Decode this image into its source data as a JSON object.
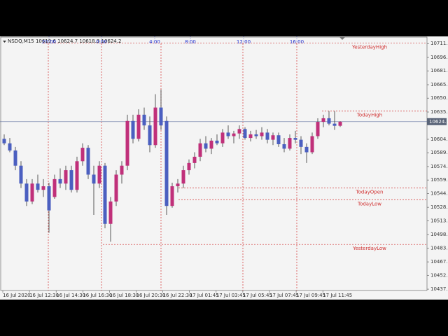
{
  "chart_data": {
    "type": "candlestick",
    "title": "NSDQ,M15  10619.6 10624.7 10618.3 10624.2",
    "open": [
      10605,
      10600,
      10592,
      10575,
      10555,
      10535,
      10555,
      10548,
      10552,
      10540,
      10560,
      10555,
      10570,
      10548,
      10580,
      10595,
      10565,
      10555,
      10575,
      10510,
      10535,
      10565,
      10575,
      10625,
      10605,
      10632,
      10620,
      10598,
      10640,
      10625,
      10530,
      10552,
      10555,
      10570,
      10578,
      10585,
      10600,
      10594,
      10603,
      10600,
      10612,
      10608,
      10611,
      10616,
      10606,
      10610,
      10608,
      10612,
      10604,
      10609,
      10599,
      10594,
      10606,
      10604,
      10596,
      10590,
      10608,
      10624,
      10628,
      10622,
      10619.6
    ],
    "high": [
      10610,
      10606,
      10596,
      10580,
      10560,
      10560,
      10565,
      10560,
      10556,
      10565,
      10572,
      10575,
      10575,
      10585,
      10600,
      10598,
      10575,
      10580,
      10578,
      10540,
      10570,
      10580,
      10632,
      10632,
      10638,
      10640,
      10630,
      10655,
      10660,
      10630,
      10556,
      10560,
      10575,
      10582,
      10590,
      10605,
      10608,
      10606,
      10610,
      10616,
      10620,
      10614,
      10620,
      10618,
      10614,
      10615,
      10618,
      10616,
      10612,
      10612,
      10606,
      10610,
      10614,
      10608,
      10600,
      10612,
      10628,
      10632,
      10636,
      10636,
      10624.7
    ],
    "low": [
      10598,
      10590,
      10570,
      10550,
      10530,
      10532,
      10545,
      10540,
      10500,
      10538,
      10550,
      10548,
      10545,
      10545,
      10575,
      10560,
      10520,
      10550,
      10505,
      10490,
      10530,
      10555,
      10570,
      10600,
      10602,
      10615,
      10590,
      10595,
      10615,
      10520,
      10528,
      10545,
      10550,
      10565,
      10572,
      10580,
      10590,
      10588,
      10598,
      10596,
      10605,
      10600,
      10605,
      10604,
      10602,
      10605,
      10604,
      10600,
      10598,
      10596,
      10590,
      10592,
      10600,
      10588,
      10578,
      10588,
      10605,
      10618,
      10620,
      10615,
      10618.3
    ],
    "close": [
      10600,
      10592,
      10575,
      10555,
      10535,
      10555,
      10548,
      10552,
      10525,
      10560,
      10555,
      10570,
      10548,
      10580,
      10595,
      10565,
      10555,
      10575,
      10510,
      10535,
      10565,
      10575,
      10625,
      10605,
      10632,
      10620,
      10598,
      10640,
      10620,
      10530,
      10552,
      10555,
      10570,
      10578,
      10585,
      10600,
      10594,
      10603,
      10600,
      10612,
      10608,
      10611,
      10616,
      10606,
      10610,
      10608,
      10612,
      10604,
      10609,
      10599,
      10594,
      10606,
      10604,
      10596,
      10590,
      10608,
      10624,
      10628,
      10622,
      10619.6,
      10624.2
    ],
    "up_color": "#c0307a",
    "down_color": "#4b5fc0",
    "ylim": [
      10435.5,
      10719.5
    ],
    "yticks": [
      10711.5,
      {
        "value": 10696,
        "label": "10696.0"
      },
      {
        "value": 10681,
        "label": "10681.0"
      },
      10665.5,
      10650.5,
      {
        "value": 10635,
        "label": "10635.0"
      },
      10604.5,
      10589.5,
      {
        "value": 10574,
        "label": "10574.0"
      },
      {
        "value": 10559,
        "label": "10559.0"
      },
      {
        "value": 10544,
        "label": "10544.0"
      },
      10528.5,
      10513.5,
      {
        "value": 10498,
        "label": "10498.0"
      },
      {
        "value": 10483,
        "label": "10483.0"
      },
      10467.5,
      10452.5,
      {
        "value": 10437,
        "label": "10437.0"
      }
    ],
    "x_labels": [
      "16 Jul 2020",
      "16 Jul 12:30",
      "16 Jul 14:30",
      "16 Jul 16:30",
      "16 Jul 18:30",
      "16 Jul 20:30",
      "16 Jul 22:30",
      "17 Jul 01:45",
      "17 Jul 03:45",
      "17 Jul 05:45",
      "17 Jul 07:45",
      "17 Jul 09:45",
      "17 Jul 11:45"
    ],
    "session_labels": [
      "20:00",
      "0:00",
      "4:00",
      "8:00",
      "12:00",
      "16:00"
    ],
    "levels": [
      {
        "name": "YesterdayHigh",
        "value": 10712
      },
      {
        "name": "TodayHigh",
        "value": 10636
      },
      {
        "name": "TodayOpen",
        "value": 10550
      },
      {
        "name": "TodayLow",
        "value": 10537
      },
      {
        "name": "YesterdayLow",
        "value": 10487
      }
    ],
    "level_color": "#d03030",
    "price": 10624.2,
    "price_label": "10624.2"
  }
}
